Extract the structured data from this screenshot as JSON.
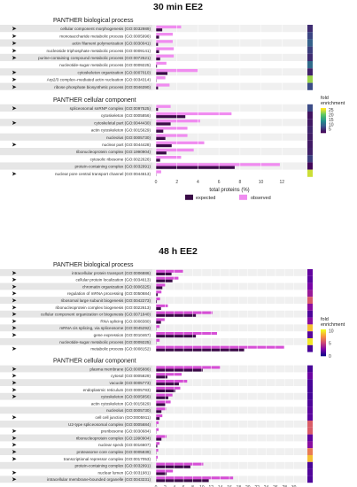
{
  "chart_data": [
    {
      "type": "bar",
      "orientation": "horizontal",
      "title": "30 min EE2",
      "xlabel": "total proteins (%)",
      "xlim": [
        0,
        14
      ],
      "xticks": [
        0,
        2,
        4,
        6,
        8,
        10,
        12
      ],
      "grid": true,
      "legend": {
        "position": "bottom",
        "entries": [
          "expected",
          "observed"
        ]
      },
      "colors": {
        "expected": "#3a0b47",
        "observed": "#f08cf0"
      },
      "groups": [
        {
          "title": "PANTHER biological process",
          "categories": [
            "cellular component morphogenesis (GO:0032989)",
            "monosaccharide metabolic process (GO:0005996)",
            "actin filament polymerization (GO:0030041)",
            "nucleoside triphosphate metabolic process (GO:0009141)",
            "purine-containing compound metabolic process (GO:0072521)",
            "nucleotide-sugar metabolic process (GO:0009225)",
            "cytoskeleton organization (GO:0007010)",
            "Arp2/3 complex–mediated actin nucleation (GO:0034314)",
            "ribose phosphate biosynthetic process (GO:0046390)"
          ],
          "arrows": [
            true,
            true,
            true,
            true,
            true,
            false,
            true,
            true,
            true
          ],
          "series": [
            {
              "name": "expected",
              "values": [
                0.6,
                0.3,
                0.2,
                0.3,
                0.4,
                0.1,
                1.1,
                0.05,
                0.2
              ]
            },
            {
              "name": "observed",
              "values": [
                2.4,
                1.6,
                1.6,
                1.7,
                1.7,
                1.0,
                4.0,
                0.9,
                1.3
              ]
            }
          ],
          "fold_enrichment": [
            4.5,
            6.5,
            9,
            6,
            4.5,
            10,
            3.5,
            23,
            7
          ]
        },
        {
          "title": "PANTHER cellular component",
          "categories": [
            "spliceosomal snRNP complex (GO:0097525)",
            "cytoskeleton (GO:0005856)",
            "cytoskeletal part (GO:0044430)",
            "actin cytoskeleton (GO:0015629)",
            "nucleolus (GO:0005730)",
            "nuclear part (GO:0044428)",
            "ribonucleoprotein complex (GO:1990904)",
            "cytosolic ribosome (GO:0022626)",
            "protein-containing complex (GO:0032991)",
            "nuclear pore central transport channel (GO:0044613)"
          ],
          "arrows": [
            true,
            false,
            true,
            false,
            false,
            true,
            false,
            false,
            false,
            true
          ],
          "series": [
            {
              "name": "expected",
              "values": [
                0.2,
                2.8,
                1.4,
                0.7,
                0.9,
                1.5,
                1.0,
                0.4,
                7.5,
                0.02
              ]
            },
            {
              "name": "observed",
              "values": [
                1.4,
                7.2,
                4.2,
                3.0,
                3.0,
                4.6,
                3.6,
                2.4,
                11.8,
                0.5
              ]
            }
          ],
          "fold_enrichment": [
            7,
            2.5,
            3,
            4,
            3.3,
            3,
            3.5,
            6,
            1.6,
            25
          ]
        }
      ],
      "colorbar": {
        "title": "fold enrichment",
        "ticks": [
          5,
          10,
          15,
          20,
          25
        ],
        "range": [
          1,
          27
        ]
      }
    },
    {
      "type": "bar",
      "orientation": "horizontal",
      "title": "48 h EE2",
      "xlabel": "total proteins (%)",
      "xlim": [
        0,
        32
      ],
      "xticks": [
        0,
        2,
        4,
        6,
        8,
        10,
        12,
        14,
        16,
        18,
        20,
        22,
        24,
        26,
        28,
        30
      ],
      "grid": true,
      "legend": {
        "position": "bottom",
        "entries": [
          "expected",
          "observed"
        ]
      },
      "colors": {
        "expected": "#3a0b47",
        "observed": "#d64fd6"
      },
      "groups": [
        {
          "title": "PANTHER biological process",
          "categories": [
            "intracellular protein transport (GO:0006886)",
            "cellular protein localization (GO:0034613)",
            "chromatin organization (GO:0006325)",
            "regulation of mRNA processing (GO:0050684)",
            "ribosomal large subunit biogenesis (GO:0042273)",
            "ribonucleoprotein complex biogenesis (GO:0022613)",
            "cellular component organization or biogenesis (GO:0071840)",
            "RNA splicing (GO:0008380)",
            "mRNA cis splicing, via spliceosome (GO:0045292)",
            "gene expression (GO:0010467)",
            "nucleotide-sugar metabolic process (GO:0009225)",
            "metabolic process (GO:0008152)"
          ],
          "arrows": [
            true,
            true,
            true,
            true,
            true,
            true,
            true,
            true,
            true,
            true,
            false,
            true
          ],
          "series": [
            {
              "name": "expected",
              "values": [
                3.4,
                3.6,
                1.4,
                0.4,
                0.2,
                1.1,
                8.7,
                1.1,
                0.1,
                8.7,
                0.1,
                19.2
              ]
            },
            {
              "name": "observed",
              "values": [
                5.9,
                4.9,
                2.1,
                1.2,
                0.9,
                2.6,
                12.3,
                1.9,
                0.8,
                13.3,
                0.8,
                27.9
              ]
            }
          ],
          "fold_enrichment": [
            2,
            1.8,
            2.5,
            3.5,
            6,
            3,
            1.5,
            3,
            9,
            1.7,
            10,
            1.4
          ]
        },
        {
          "title": "PANTHER cellular component",
          "categories": [
            "plasma membrane (GO:0005886)",
            "cytosol (GO:0005829)",
            "vacuole (GO:0005773)",
            "endoplasmic reticulum (GO:0005783)",
            "cytoskeleton (GO:0005856)",
            "actin cytoskeleton (GO:0015629)",
            "nucleolus (GO:0005730)",
            "cell cell junction (GO:0005911)",
            "U2-type spliceosomal complex (GO:0005684)",
            "preribosome (GO:0030684)",
            "ribonucleoprotein complex (GO:1990904)",
            "nuclear speck (GO:0016607)",
            "proteasome core complex (GO:0005839)",
            "transcriptional repressor complex (GO:0017053)",
            "protein-containing complex (GO:0032991)",
            "nuclear lumen (GO:0031981)",
            "intracellular membrane-bounded organelle (GO:0043231)"
          ],
          "arrows": [
            true,
            true,
            true,
            true,
            true,
            false,
            false,
            true,
            false,
            true,
            true,
            true,
            true,
            true,
            false,
            true,
            true
          ],
          "series": [
            {
              "name": "expected",
              "values": [
                10.2,
                2.5,
                5.0,
                4.2,
                2.7,
                2.1,
                1.2,
                0.8,
                0.1,
                0.1,
                1.2,
                0.3,
                0.1,
                0.05,
                7.5,
                2.3,
                11.5
              ]
            },
            {
              "name": "observed",
              "values": [
                14.0,
                5.6,
                6.8,
                5.3,
                3.6,
                3.2,
                2.2,
                1.4,
                0.6,
                0.6,
                2.3,
                0.8,
                0.5,
                0.4,
                10.3,
                3.7,
                16.8
              ]
            }
          ],
          "fold_enrichment": [
            1.4,
            2.2,
            1.4,
            1.3,
            1.3,
            1.5,
            1.8,
            1.8,
            6,
            6,
            1.9,
            3,
            7,
            9,
            1.4,
            1.6,
            1.5
          ]
        }
      ],
      "colorbar": {
        "title": "fold enrichment",
        "ticks": [
          0,
          5,
          10
        ],
        "range": [
          0,
          10.5
        ]
      }
    }
  ]
}
